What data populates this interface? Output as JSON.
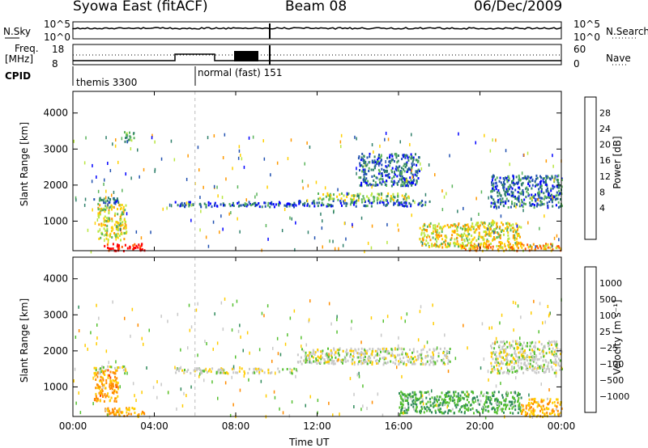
{
  "header": {
    "station": "Syowa East (fitACF)",
    "beam": "Beam 08",
    "date": "06/Dec/2009"
  },
  "top_panels": {
    "nsky_label": "N.Sky",
    "nsky_ticks": [
      "10^5",
      "10^0"
    ],
    "nsearch_label": "N.Search",
    "nsearch_ticks": [
      "10^5",
      "10^0"
    ],
    "freq_label": "Freq.",
    "freq_unit": "[MHz]",
    "freq_ticks": [
      "18",
      "8"
    ],
    "nave_label": "Nave",
    "nave_ticks": [
      "60",
      "0"
    ],
    "cpid_label": "CPID",
    "cpid_modes": [
      {
        "text": "themis 3300",
        "start_hour": 0
      },
      {
        "text": "normal (fast) 151",
        "start_hour": 6
      }
    ]
  },
  "x_axis": {
    "label": "Time UT",
    "ticks": [
      "00:00",
      "04:00",
      "08:00",
      "12:00",
      "16:00",
      "20:00",
      "00:00"
    ]
  },
  "y_axis": {
    "label": "Slant Range [km]",
    "ticks": [
      "4000",
      "3000",
      "2000",
      "1000"
    ]
  },
  "power_scale": {
    "label": "Power [dB]",
    "ticks": [
      "28",
      "24",
      "20",
      "16",
      "12",
      "8",
      "4"
    ],
    "colors": [
      "#ff0000",
      "#ff5a00",
      "#ff9900",
      "#ffd000",
      "#b8e640",
      "#5ab45a",
      "#2f7f6a",
      "#2050b0",
      "#0000ff"
    ]
  },
  "velocity_scale": {
    "label": "Velocity [m s⁻¹]",
    "ticks": [
      "1000",
      "500",
      "100",
      "25",
      "−25",
      "−100",
      "−500",
      "−1000"
    ],
    "colors": [
      "#2c3fb8",
      "#3070b0",
      "#2f8a5a",
      "#55c030",
      "#c8c8c8",
      "#ffcc00",
      "#ff8c00",
      "#ff4000",
      "#ff0000"
    ]
  },
  "chart_data": {
    "type": "heatmap",
    "title": "Syowa East (fitACF)",
    "xlabel": "Time UT",
    "ylabel": "Slant Range [km]",
    "xlim": [
      0,
      24
    ],
    "ylim": [
      180,
      4600
    ],
    "panels": [
      {
        "name": "Power",
        "units": "dB",
        "clim": [
          3,
          30
        ],
        "regions": [
          {
            "t": [
              1.0,
              2.2
            ],
            "r": [
              1480,
              1700
            ],
            "v": 10
          },
          {
            "t": [
              1.2,
              2.6
            ],
            "r": [
              500,
              1500
            ],
            "v": 18
          },
          {
            "t": [
              1.5,
              3.5
            ],
            "r": [
              200,
              400
            ],
            "v": 29
          },
          {
            "t": [
              2.5,
              3.0
            ],
            "r": [
              3200,
              3500
            ],
            "v": 14
          },
          {
            "t": [
              5.0,
              11.0
            ],
            "r": [
              1420,
              1560
            ],
            "v": 8
          },
          {
            "t": [
              10.5,
              17.5
            ],
            "r": [
              1440,
              1600
            ],
            "v": 8
          },
          {
            "t": [
              12.0,
              16.5
            ],
            "r": [
              1600,
              1800
            ],
            "v": 16
          },
          {
            "t": [
              14.0,
              17.0
            ],
            "r": [
              2000,
              2900
            ],
            "v": 9
          },
          {
            "t": [
              17.0,
              22.0
            ],
            "r": [
              300,
              1000
            ],
            "v": 18
          },
          {
            "t": [
              20.5,
              24.0
            ],
            "r": [
              1400,
              2300
            ],
            "v": 9
          },
          {
            "t": [
              19.0,
              24.0
            ],
            "r": [
              200,
              400
            ],
            "v": 22
          }
        ]
      },
      {
        "name": "Velocity",
        "units": "m/s",
        "clim": [
          -1000,
          1000
        ],
        "regions": [
          {
            "t": [
              1.0,
              2.6
            ],
            "r": [
              1400,
              1600
            ],
            "v": 0
          },
          {
            "t": [
              1.0,
              2.2
            ],
            "r": [
              600,
              1500
            ],
            "v": -400
          },
          {
            "t": [
              1.5,
              3.5
            ],
            "r": [
              200,
              450
            ],
            "v": -300
          },
          {
            "t": [
              5.0,
              11.0
            ],
            "r": [
              1400,
              1550
            ],
            "v": 0
          },
          {
            "t": [
              11.0,
              18.5
            ],
            "r": [
              1650,
              2100
            ],
            "v": 0
          },
          {
            "t": [
              16.0,
              22.0
            ],
            "r": [
              300,
              900
            ],
            "v": 300
          },
          {
            "t": [
              20.5,
              24.0
            ],
            "r": [
              1400,
              2300
            ],
            "v": 0
          },
          {
            "t": [
              22.0,
              24.0
            ],
            "r": [
              200,
              700
            ],
            "v": -300
          }
        ]
      }
    ]
  }
}
